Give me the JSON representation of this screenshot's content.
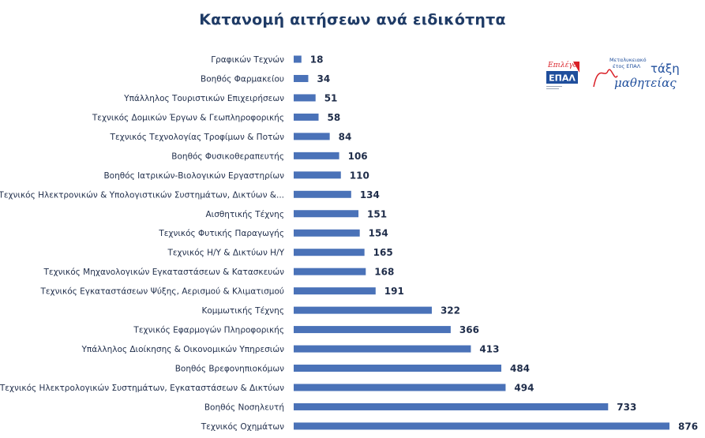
{
  "title": "Κατανομή αιτήσεων ανά ειδικότητα",
  "colors": {
    "bar": "#4a72b8",
    "title": "#1f3b66",
    "text": "#1f2d4a",
    "logo_red": "#d92027",
    "logo_blue": "#1f4e9c"
  },
  "logos": {
    "epal": {
      "text": "ΕΠΑΛ",
      "script": "Επιλέγω"
    },
    "taxi": {
      "line1": "Μεταλυκειακό",
      "line2": "έτος ΕΠΑΛ",
      "word1": "τάξη",
      "word2": "μαθητείας"
    }
  },
  "chart_data": {
    "type": "bar",
    "orientation": "horizontal",
    "title": "Κατανομή αιτήσεων ανά ειδικότητα",
    "categories": [
      "Γραφικών Τεχνών",
      "Βοηθός Φαρμακείου",
      "Υπάλληλος Τουριστικών Επιχειρήσεων",
      "Τεχνικός Δομικών Έργων & Γεωπληροφορικής",
      "Τεχνικός Τεχνολογίας Τροφίμων & Ποτών",
      "Βοηθός Φυσικοθεραπευτής",
      "Βοηθός Ιατρικών-Βιολογικών Εργαστηρίων",
      "Τεχνικός Ηλεκτρονικών & Υπολογιστικών Συστημάτων, Δικτύων &...",
      "Αισθητικής Τέχνης",
      "Τεχνικός Φυτικής Παραγωγής",
      "Τεχνικός Η/Υ & Δικτύων Η/Υ",
      "Τεχνικός Μηχανολογικών Εγκαταστάσεων & Κατασκευών",
      "Τεχνικός Εγκαταστάσεων Ψύξης, Αερισμού & Κλιματισμού",
      "Κομμωτικής Τέχνης",
      "Τεχνικός Εφαρμογών Πληροφορικής",
      "Υπάλληλος Διοίκησης & Οικονομικών Υπηρεσιών",
      "Βοηθός Βρεφονηπιοκόμων",
      "Τεχνικός Ηλεκτρολογικών Συστημάτων, Εγκαταστάσεων & Δικτύων",
      "Βοηθός Νοσηλευτή",
      "Τεχνικός Οχημάτων"
    ],
    "values": [
      18,
      34,
      51,
      58,
      84,
      106,
      110,
      134,
      151,
      154,
      165,
      168,
      191,
      322,
      366,
      413,
      484,
      494,
      733,
      876
    ],
    "xlim": [
      0,
      876
    ],
    "data_labels": true,
    "grid": false,
    "legend": "none"
  }
}
